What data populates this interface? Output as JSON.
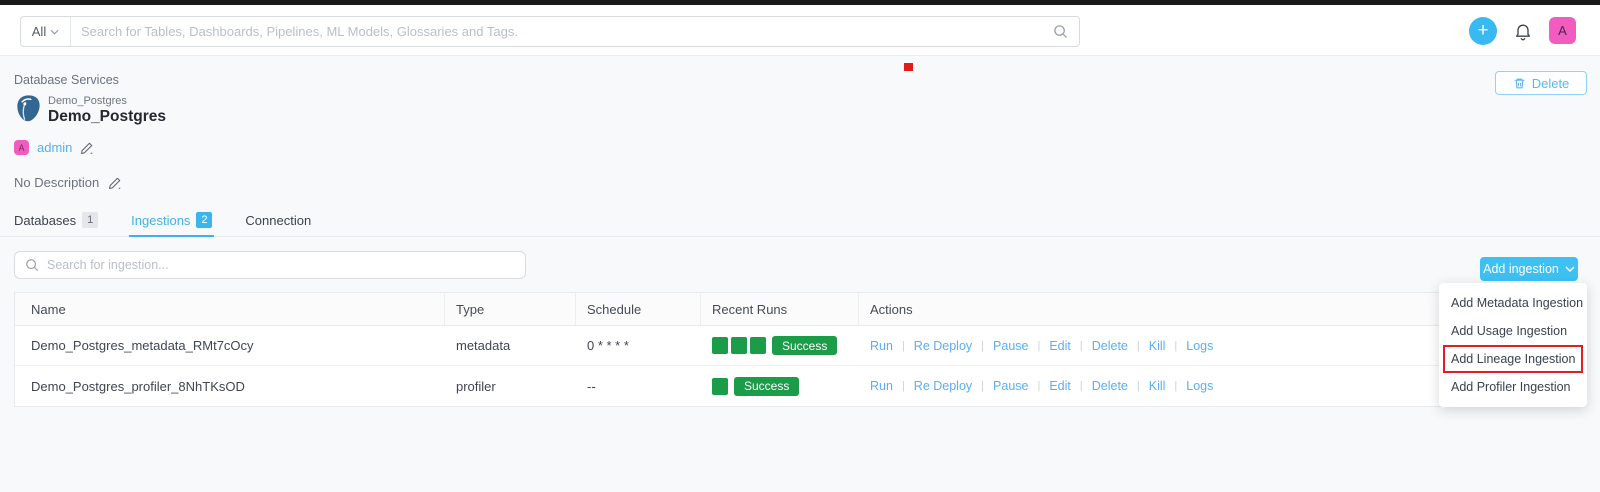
{
  "colors": {
    "accent_blue": "#41b2e9",
    "button_cyan": "#3ec1f2",
    "link_blue": "#5caef2",
    "success_green": "#1a9c49",
    "avatar_pink": "#f25cc1",
    "annotation_red": "#e31b1b"
  },
  "header": {
    "search_scope": "All",
    "search_placeholder": "Search for Tables, Dashboards, Pipelines, ML Models, Glossaries and Tags.",
    "plus_label": "+",
    "avatar_initial": "A"
  },
  "breadcrumb": "Database Services",
  "service": {
    "type_label": "Demo_Postgres",
    "title": "Demo_Postgres",
    "owner": "admin",
    "owner_initial": "A",
    "description": "No Description"
  },
  "delete_button_label": "Delete",
  "tabs": [
    {
      "label": "Databases",
      "count": "1"
    },
    {
      "label": "Ingestions",
      "count": "2"
    },
    {
      "label": "Connection"
    }
  ],
  "ingestion_toolbar": {
    "search_placeholder": "Search for ingestion...",
    "add_button_label": "Add ingestion"
  },
  "add_ingestion_menu": {
    "items": [
      "Add Metadata Ingestion",
      "Add Usage Ingestion",
      "Add Lineage Ingestion",
      "Add Profiler Ingestion"
    ],
    "highlighted_item": "Add Lineage Ingestion"
  },
  "table": {
    "columns": [
      "Name",
      "Type",
      "Schedule",
      "Recent Runs",
      "Actions"
    ],
    "rows": [
      {
        "name": "Demo_Postgres_metadata_RMt7cOcy",
        "type": "metadata",
        "schedule": "0 * * * *",
        "recent_runs": {
          "squares": 3,
          "status": "Success"
        },
        "actions": [
          "Run",
          "Re Deploy",
          "Pause",
          "Edit",
          "Delete",
          "Kill",
          "Logs"
        ]
      },
      {
        "name": "Demo_Postgres_profiler_8NhTKsOD",
        "type": "profiler",
        "schedule": "--",
        "recent_runs": {
          "squares": 1,
          "status": "Success"
        },
        "actions": [
          "Run",
          "Re Deploy",
          "Pause",
          "Edit",
          "Delete",
          "Kill",
          "Logs"
        ]
      }
    ]
  }
}
